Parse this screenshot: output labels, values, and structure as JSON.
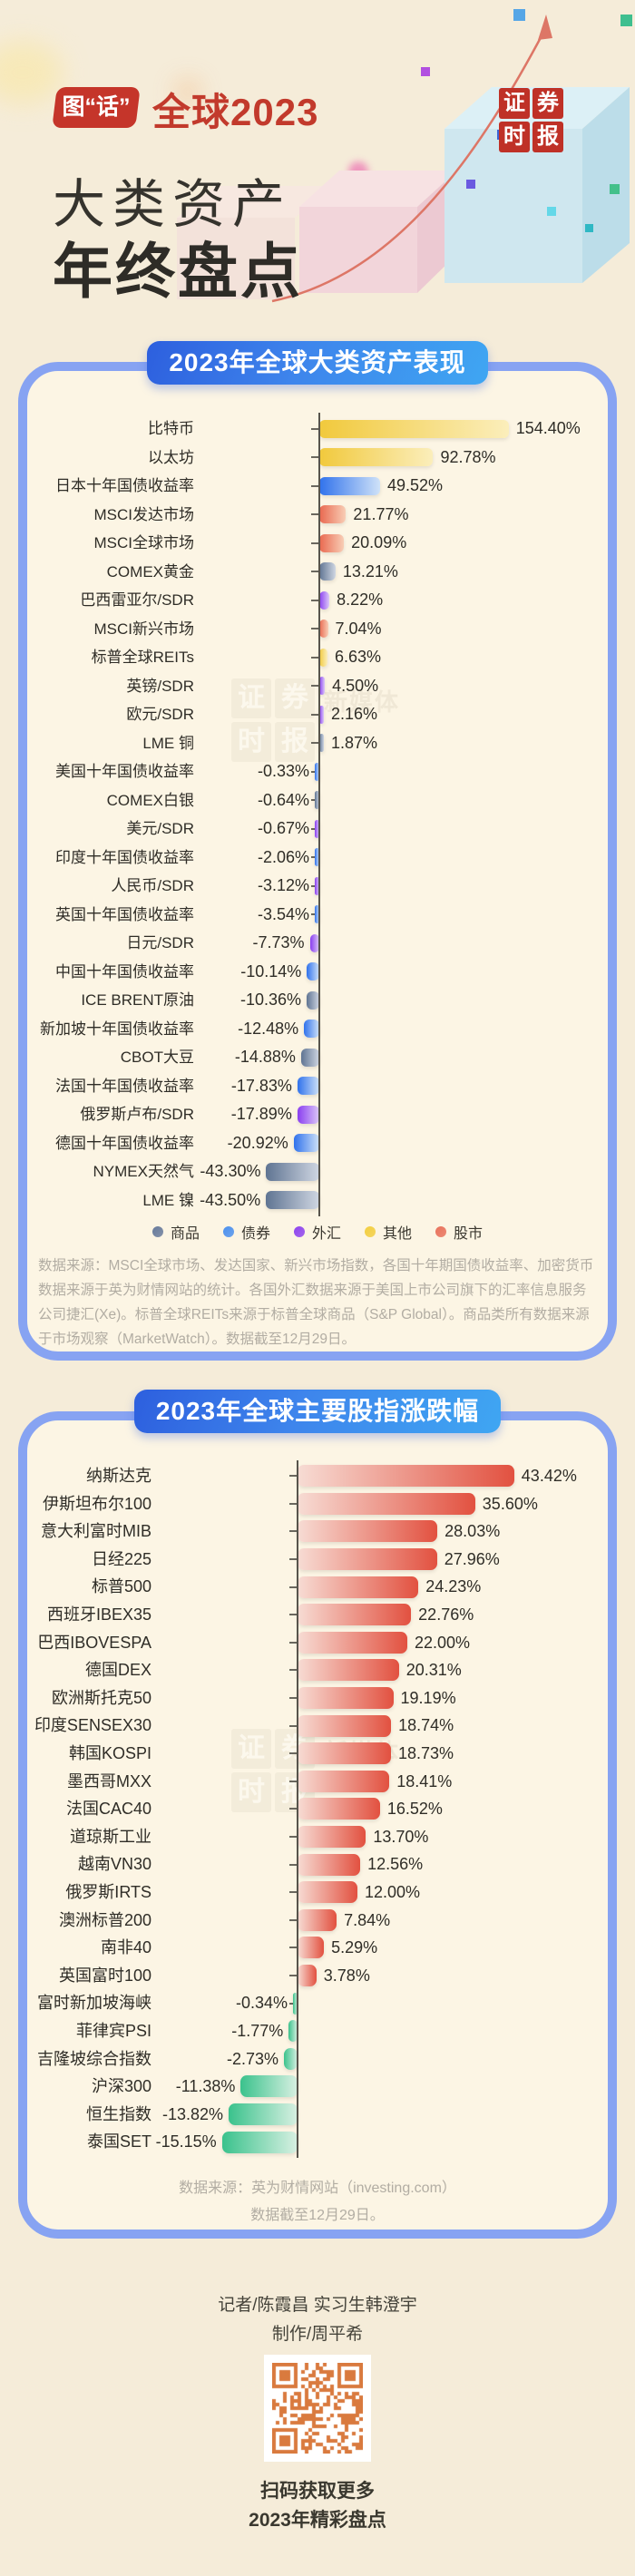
{
  "header": {
    "badge_label": "图“话”",
    "year_label": "全球2023",
    "title_line1": "大类资产",
    "title_line2": "年终盘点",
    "logo_chars": [
      "证",
      "券",
      "时",
      "报"
    ]
  },
  "watermark": {
    "chars": [
      "证",
      "券",
      "时",
      "报"
    ],
    "text": "新媒体"
  },
  "chart_data": [
    {
      "type": "bar",
      "orientation": "horizontal",
      "title": "2023年全球大类资产表现",
      "unit": "%",
      "xlim": [
        -50,
        160
      ],
      "grid": false,
      "legend_position": "bottom",
      "legend": [
        {
          "key": "commodity",
          "label": "商品",
          "color": "#66799a"
        },
        {
          "key": "bond",
          "label": "债券",
          "color": "#4a8fee"
        },
        {
          "key": "fx",
          "label": "外汇",
          "color": "#8d42ee"
        },
        {
          "key": "other",
          "label": "其他",
          "color": "#f2cd3e"
        },
        {
          "key": "stock",
          "label": "股市",
          "color": "#e8705a"
        }
      ],
      "category_colors": {
        "commodity": {
          "sat": "#5f7492",
          "light": "#cfd6e2"
        },
        "bond": {
          "sat": "#3072ec",
          "light": "#cfe2f8"
        },
        "fx": {
          "sat": "#8a3ef0",
          "light": "#dcc8f8"
        },
        "other": {
          "sat": "#f1c93c",
          "light": "#fbeebb"
        },
        "stock": {
          "sat": "#e9684f",
          "light": "#f8cdb5"
        }
      },
      "categories": [
        "比特币",
        "以太坊",
        "日本十年国债收益率",
        "MSCI发达市场",
        "MSCI全球市场",
        "COMEX黄金",
        "巴西雷亚尔/SDR",
        "MSCI新兴市场",
        "标普全球REITs",
        "英镑/SDR",
        "欧元/SDR",
        "LME 铜",
        "美国十年国债收益率",
        "COMEX白银",
        "美元/SDR",
        "印度十年国债收益率",
        "人民币/SDR",
        "英国十年国债收益率",
        "日元/SDR",
        "中国十年国债收益率",
        "ICE BRENT原油",
        "新加坡十年国债收益率",
        "CBOT大豆",
        "法国十年国债收益率",
        "俄罗斯卢布/SDR",
        "德国十年国债收益率",
        "NYMEX天然气",
        "LME 镍"
      ],
      "values": [
        154.4,
        92.78,
        49.52,
        21.77,
        20.09,
        13.21,
        8.22,
        7.04,
        6.63,
        4.5,
        2.16,
        1.87,
        -0.33,
        -0.64,
        -0.67,
        -2.06,
        -3.12,
        -3.54,
        -7.73,
        -10.14,
        -10.36,
        -12.48,
        -14.88,
        -17.83,
        -17.89,
        -20.92,
        -43.3,
        -43.5
      ],
      "item_categories": [
        "other",
        "other",
        "bond",
        "stock",
        "stock",
        "commodity",
        "fx",
        "stock",
        "other",
        "fx",
        "fx",
        "commodity",
        "bond",
        "commodity",
        "fx",
        "bond",
        "fx",
        "bond",
        "fx",
        "bond",
        "commodity",
        "bond",
        "commodity",
        "bond",
        "fx",
        "bond",
        "commodity",
        "commodity"
      ],
      "source": "数据来源：MSCI全球市场、发达国家、新兴市场指数，各国十年期国债收益率、加密货币数据来源于英为财情网站的统计。各国外汇数据来源于美国上市公司旗下的汇率信息服务公司捷汇(Xe)。标普全球REITs来源于标普全球商品（S&P Global）。商品类所有数据来源于市场观察（MarketWatch）。数据截至12月29日。"
    },
    {
      "type": "bar",
      "orientation": "horizontal",
      "title": "2023年全球主要股指涨跌幅",
      "unit": "%",
      "xlim": [
        -20,
        50
      ],
      "grid": false,
      "positive_color": {
        "sat": "#e25140",
        "light": "#f7dcd4"
      },
      "negative_color": {
        "sat": "#3ac28c",
        "light": "#d8f0e2"
      },
      "categories": [
        "纳斯达克",
        "伊斯坦布尔100",
        "意大利富时MIB",
        "日经225",
        "标普500",
        "西班牙IBEX35",
        "巴西IBOVESPA",
        "德国DEX",
        "欧洲斯托克50",
        "印度SENSEX30",
        "韩国KOSPI",
        "墨西哥MXX",
        "法国CAC40",
        "道琼斯工业",
        "越南VN30",
        "俄罗斯IRTS",
        "澳洲标普200",
        "南非40",
        "英国富时100",
        "富时新加坡海峡",
        "菲律宾PSI",
        "吉隆坡综合指数",
        "沪深300",
        "恒生指数",
        "泰国SET"
      ],
      "values": [
        43.42,
        35.6,
        28.03,
        27.96,
        24.23,
        22.76,
        22.0,
        20.31,
        19.19,
        18.74,
        18.73,
        18.41,
        16.52,
        13.7,
        12.56,
        12.0,
        7.84,
        5.29,
        3.78,
        -0.34,
        -1.77,
        -2.73,
        -11.38,
        -13.82,
        -15.15
      ],
      "source_line1": "数据来源：英为财情网站（investing.com）",
      "source_line2": "数据截至12月29日。"
    }
  ],
  "footer": {
    "credit_line1": "记者/陈霞昌 实习生韩澄宇",
    "credit_line2": "制作/周平希",
    "qr_caption_line1": "扫码获取更多",
    "qr_caption_line2": "2023年精彩盘点"
  }
}
